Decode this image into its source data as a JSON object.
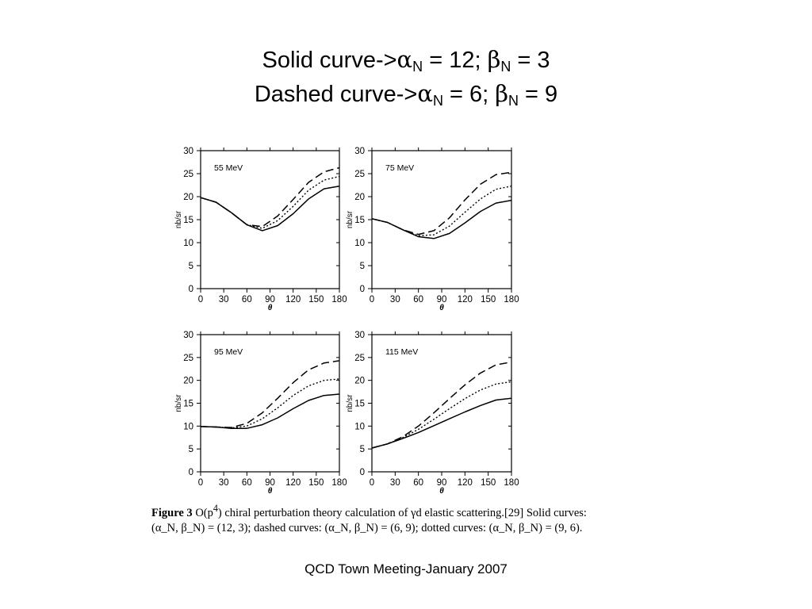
{
  "title": {
    "line1": {
      "prefix": "Solid curve->",
      "alpha": "α",
      "alpha_sub": "N",
      "mid": " = 12; ",
      "beta": "β",
      "beta_sub": "N",
      "suffix": " = 3"
    },
    "line2": {
      "prefix": "Dashed curve->",
      "alpha": "α",
      "alpha_sub": "N",
      "mid": " = 6; ",
      "beta": "β",
      "beta_sub": "N",
      "suffix": " = 9"
    }
  },
  "chart_data": [
    {
      "type": "line",
      "panel_label": "55 MeV",
      "xlabel": "θ",
      "ylabel": "nb/sr",
      "xlim": [
        0,
        180
      ],
      "ylim": [
        0,
        30
      ],
      "xticks": [
        0,
        30,
        60,
        90,
        120,
        150,
        180
      ],
      "yticks": [
        0,
        5,
        10,
        15,
        20,
        25,
        30
      ],
      "x": [
        0,
        20,
        40,
        60,
        80,
        100,
        120,
        140,
        160,
        180
      ],
      "series": [
        {
          "style": "solid",
          "values": [
            19.8,
            18.8,
            16.5,
            13.9,
            12.6,
            13.7,
            16.3,
            19.5,
            21.7,
            22.3
          ]
        },
        {
          "style": "dashed",
          "values": [
            19.8,
            18.8,
            16.5,
            13.9,
            13.5,
            15.8,
            19.4,
            23.1,
            25.4,
            26.3
          ]
        },
        {
          "style": "dotted",
          "values": [
            19.8,
            18.8,
            16.5,
            13.9,
            13.1,
            14.8,
            17.9,
            21.4,
            23.6,
            24.4
          ]
        }
      ]
    },
    {
      "type": "line",
      "panel_label": "75 MeV",
      "xlabel": "θ",
      "ylabel": "nb/sr",
      "xlim": [
        0,
        180
      ],
      "ylim": [
        0,
        30
      ],
      "xticks": [
        0,
        30,
        60,
        90,
        120,
        150,
        180
      ],
      "yticks": [
        0,
        5,
        10,
        15,
        20,
        25,
        30
      ],
      "x": [
        0,
        20,
        40,
        60,
        80,
        100,
        120,
        140,
        160,
        180
      ],
      "series": [
        {
          "style": "solid",
          "values": [
            15.2,
            14.4,
            12.8,
            11.3,
            10.9,
            12.0,
            14.3,
            16.8,
            18.6,
            19.2
          ]
        },
        {
          "style": "dashed",
          "values": [
            15.2,
            14.4,
            12.8,
            11.8,
            12.6,
            15.4,
            19.3,
            22.7,
            24.8,
            25.3
          ]
        },
        {
          "style": "dotted",
          "values": [
            15.2,
            14.4,
            12.8,
            11.5,
            11.7,
            13.6,
            16.6,
            19.5,
            21.6,
            22.3
          ]
        }
      ]
    },
    {
      "type": "line",
      "panel_label": "95 MeV",
      "xlabel": "θ",
      "ylabel": "nb/sr",
      "xlim": [
        0,
        180
      ],
      "ylim": [
        0,
        30
      ],
      "xticks": [
        0,
        30,
        60,
        90,
        120,
        150,
        180
      ],
      "yticks": [
        0,
        5,
        10,
        15,
        20,
        25,
        30
      ],
      "x": [
        0,
        20,
        40,
        60,
        80,
        100,
        120,
        140,
        160,
        180
      ],
      "series": [
        {
          "style": "solid",
          "values": [
            9.9,
            9.8,
            9.5,
            9.5,
            10.3,
            11.8,
            13.8,
            15.6,
            16.7,
            17.0
          ]
        },
        {
          "style": "dashed",
          "values": [
            9.9,
            9.8,
            9.7,
            10.6,
            12.9,
            16.1,
            19.5,
            22.3,
            23.8,
            24.3
          ]
        },
        {
          "style": "dotted",
          "values": [
            9.9,
            9.8,
            9.6,
            10.0,
            11.6,
            14.0,
            16.7,
            18.8,
            20.0,
            20.3
          ]
        }
      ]
    },
    {
      "type": "line",
      "panel_label": "115 MeV",
      "xlabel": "θ",
      "ylabel": "nb/sr",
      "xlim": [
        0,
        180
      ],
      "ylim": [
        0,
        30
      ],
      "xticks": [
        0,
        30,
        60,
        90,
        120,
        150,
        180
      ],
      "yticks": [
        0,
        5,
        10,
        15,
        20,
        25,
        30
      ],
      "x": [
        0,
        20,
        40,
        60,
        80,
        100,
        120,
        140,
        160,
        180
      ],
      "series": [
        {
          "style": "solid",
          "values": [
            5.2,
            6.1,
            7.3,
            8.6,
            10.1,
            11.6,
            13.1,
            14.5,
            15.7,
            16.1
          ]
        },
        {
          "style": "dashed",
          "values": [
            5.2,
            6.1,
            7.7,
            10.0,
            12.9,
            16.0,
            19.0,
            21.6,
            23.4,
            24.0
          ]
        },
        {
          "style": "dotted",
          "values": [
            5.2,
            6.1,
            7.5,
            9.3,
            11.5,
            13.8,
            16.0,
            17.9,
            19.2,
            19.7
          ]
        }
      ]
    }
  ],
  "caption": {
    "fig_label": "Figure 3",
    "line1_pre": " O(p",
    "line1_sup": "4",
    "line1_post": ") chiral perturbation theory calculation of γd elastic scattering.[29] Solid curves:",
    "line2": "(α_N, β_N) = (12, 3); dashed curves: (α_N, β_N) = (6, 9); dotted curves: (α_N, β_N) = (9, 6)."
  },
  "footer": "QCD Town Meeting-January 2007"
}
